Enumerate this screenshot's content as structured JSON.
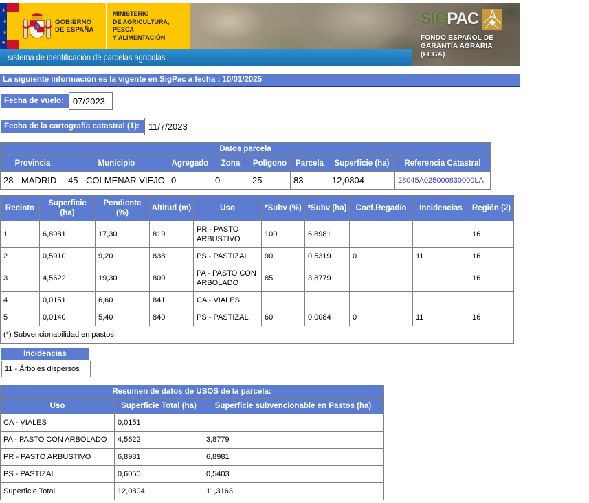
{
  "header": {
    "gobierno_line1": "GOBIERNO",
    "gobierno_line2": "DE ESPAÑA",
    "ministerio_line1": "MINISTERIO",
    "ministerio_line2": "DE AGRICULTURA, PESCA",
    "ministerio_line3": "Y ALIMENTACIÓN",
    "sigpac_sig": "SIG",
    "sigpac_pac": "PAC",
    "fega_line1": "FONDO ESPAÑOL DE",
    "fega_line2": "GARANTÍA AGRARIA",
    "fega_line3": "(FEGA)",
    "subtitle": "sistema de identificación de parcelas agrícolas"
  },
  "colors": {
    "table_header_blue": "#5b7cd1",
    "subtitle_bar_blue": "#1d7bbd",
    "brand_yellow": "#fdc600",
    "link_blue": "#3e3ccb",
    "sigpac_green": "#597b35",
    "sigpac_gold": "#c79a3e"
  },
  "info_bar": {
    "text": "La siguiente información es la vigente en SigPac a fecha : 10/01/2025"
  },
  "fields": {
    "fecha_vuelo": {
      "label": "Fecha de vuelo:",
      "value": "07/2023"
    },
    "cartografia": {
      "label": "Fecha de la cartografía catastral (1):",
      "value": "11/7/2023"
    }
  },
  "datos_parcela": {
    "title": "Datos parcela",
    "headers": [
      "Provincia",
      "Municipio",
      "Agregado",
      "Zona",
      "Polígono",
      "Parcela",
      "Superficie (ha)",
      "Referencia Catastral"
    ],
    "link_col": 7,
    "rows": [
      [
        "28 - MADRID",
        "45 - COLMENAR VIEJO",
        "0",
        "0",
        "25",
        "83",
        "12,0804",
        "28045A025000830000LA"
      ]
    ]
  },
  "recintos": {
    "headers": [
      "Recinto",
      "Superficie (ha)",
      "Pendiente (%)",
      "Altitud (m)",
      "Uso",
      "*Subv (%)",
      "*Subv (ha)",
      "Coef.Regadío",
      "Incidencias",
      "Región (2)"
    ],
    "rows": [
      [
        "1",
        "6,8981",
        "17,30",
        "819",
        "PR - PASTO ARBUSTIVO",
        "100",
        "6,8981",
        "",
        "",
        "16"
      ],
      [
        "2",
        "0,5910",
        "9,20",
        "838",
        "PS - PASTIZAL",
        "90",
        "0,5319",
        "0",
        "11",
        "16"
      ],
      [
        "3",
        "4,5622",
        "19,30",
        "809",
        "PA - PASTO CON ARBOLADO",
        "85",
        "3,8779",
        "",
        "",
        "16"
      ],
      [
        "4",
        "0,0151",
        "6,60",
        "841",
        "CA - VIALES",
        "",
        "",
        "",
        "",
        ""
      ],
      [
        "5",
        "0,0140",
        "5,40",
        "840",
        "PS - PASTIZAL",
        "60",
        "0,0084",
        "0",
        "11",
        "16"
      ]
    ],
    "footnote": "(*) Subvencionabilidad en pastos."
  },
  "incidencias": {
    "title": "Incidencias",
    "items": [
      "11 - Árboles dispersos"
    ]
  },
  "resumen": {
    "title": "Resumen de datos de USOS de la parcela:",
    "headers": [
      "Uso",
      "Superficie Total (ha)",
      "Superficie subvencionable en Pastos (ha)"
    ],
    "rows": [
      [
        "CA - VIALES",
        "0,0151",
        ""
      ],
      [
        "PA - PASTO CON ARBOLADO",
        "4,5622",
        "3,8779"
      ],
      [
        "PR - PASTO ARBUSTIVO",
        "6,8981",
        "6,8981"
      ],
      [
        "PS - PASTIZAL",
        "0,6050",
        "0,5403"
      ],
      [
        "Superficie Total",
        "12,0804",
        "11,3163"
      ]
    ]
  }
}
